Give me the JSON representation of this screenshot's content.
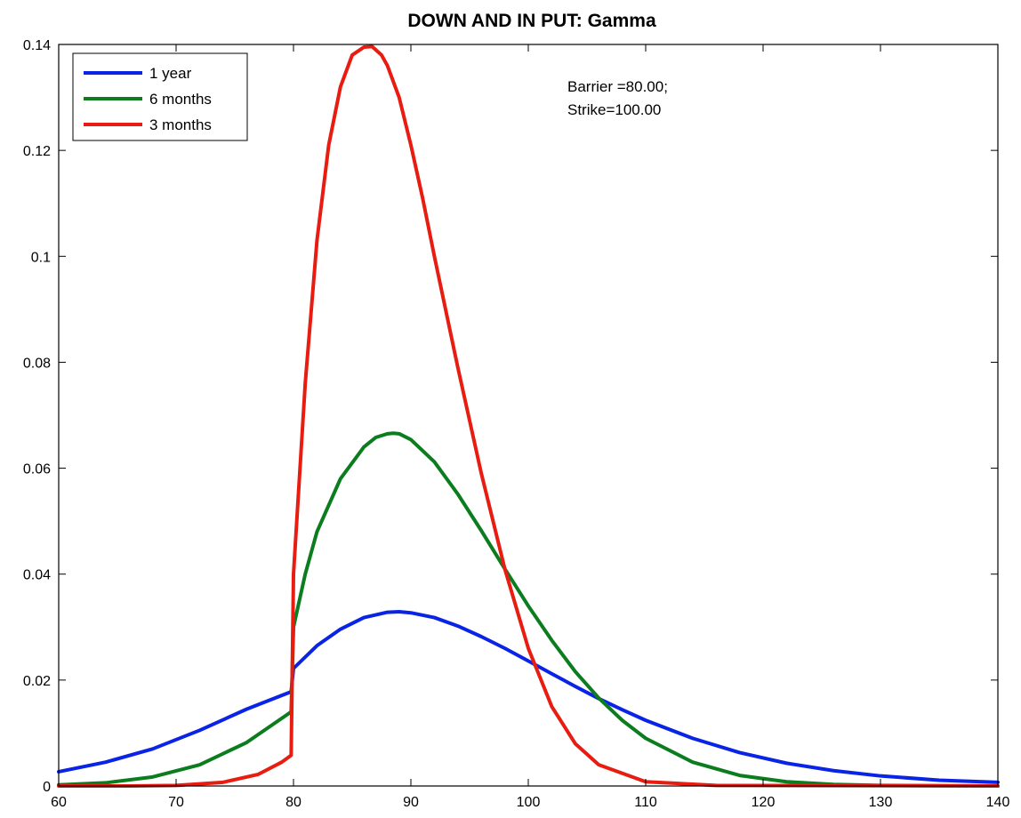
{
  "chart_data": {
    "type": "line",
    "title": "DOWN AND IN PUT: Gamma",
    "xlabel": "",
    "ylabel": "",
    "xlim": [
      60,
      140
    ],
    "ylim": [
      0,
      0.14
    ],
    "xticks": [
      60,
      70,
      80,
      90,
      100,
      110,
      120,
      130,
      140
    ],
    "yticks": [
      0,
      0.02,
      0.04,
      0.06,
      0.08,
      0.1,
      0.12,
      0.14
    ],
    "xtick_labels": [
      "60",
      "70",
      "80",
      "90",
      "100",
      "110",
      "120",
      "130",
      "140"
    ],
    "ytick_labels": [
      "0",
      "0.02",
      "0.04",
      "0.06",
      "0.08",
      "0.1",
      "0.12",
      "0.14"
    ],
    "grid": false,
    "legend_position": "top-left",
    "annotation": [
      "Barrier =80.00;",
      "Strike=100.00"
    ],
    "series": [
      {
        "name": "1 year",
        "color": "#0a24e6",
        "x": [
          60,
          64,
          68,
          72,
          76,
          79.8,
          80,
          82,
          84,
          86,
          88,
          89,
          90,
          92,
          94,
          96,
          98,
          100,
          102,
          104,
          106,
          108,
          110,
          114,
          118,
          122,
          126,
          130,
          135,
          140
        ],
        "y": [
          0.0027,
          0.0045,
          0.007,
          0.0105,
          0.0145,
          0.0178,
          0.0222,
          0.0265,
          0.0296,
          0.0318,
          0.0328,
          0.0329,
          0.0327,
          0.0318,
          0.0302,
          0.0282,
          0.026,
          0.0236,
          0.0212,
          0.0188,
          0.0165,
          0.0144,
          0.0124,
          0.009,
          0.0063,
          0.0043,
          0.0029,
          0.0019,
          0.0011,
          0.0007
        ]
      },
      {
        "name": "6 months",
        "color": "#0b7d1e",
        "x": [
          60,
          64,
          68,
          72,
          76,
          79.8,
          80,
          81,
          82,
          84,
          86,
          87,
          88,
          88.5,
          89,
          90,
          92,
          94,
          96,
          98,
          100,
          102,
          104,
          106,
          108,
          110,
          114,
          118,
          122,
          126,
          130,
          140
        ],
        "y": [
          0.0002,
          0.0006,
          0.0017,
          0.004,
          0.0082,
          0.014,
          0.03,
          0.04,
          0.048,
          0.058,
          0.064,
          0.0658,
          0.0665,
          0.0666,
          0.0665,
          0.0654,
          0.0612,
          0.0551,
          0.0482,
          0.041,
          0.034,
          0.0275,
          0.0216,
          0.0166,
          0.0124,
          0.009,
          0.0045,
          0.002,
          0.0008,
          0.0003,
          0.0001,
          0.0
        ]
      },
      {
        "name": "3 months",
        "color": "#e81c10",
        "x": [
          60,
          66,
          70,
          74,
          77,
          79,
          79.8,
          80,
          81,
          82,
          83,
          84,
          85,
          86,
          86.7,
          87.5,
          88,
          89,
          90,
          91,
          92,
          94,
          96,
          98,
          100,
          102,
          104,
          106,
          110,
          116,
          140
        ],
        "y": [
          0.0,
          0.0,
          0.0001,
          0.0007,
          0.0022,
          0.0045,
          0.0058,
          0.04,
          0.076,
          0.103,
          0.121,
          0.132,
          0.138,
          0.1395,
          0.1396,
          0.138,
          0.136,
          0.13,
          0.121,
          0.111,
          0.1,
          0.079,
          0.059,
          0.041,
          0.026,
          0.015,
          0.008,
          0.004,
          0.0008,
          0.0001,
          0.0
        ]
      }
    ]
  }
}
